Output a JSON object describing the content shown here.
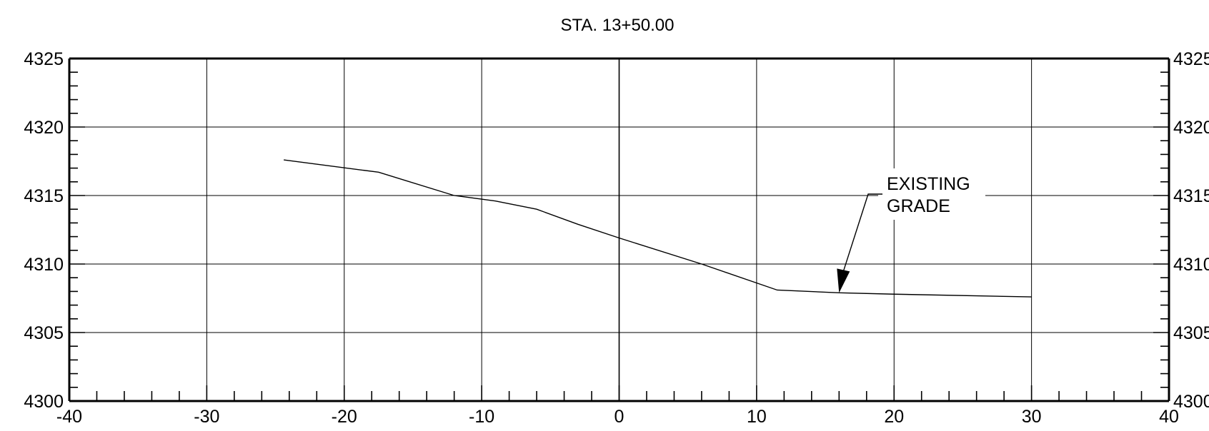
{
  "chart_data": {
    "type": "line",
    "title": "STA. 13+50.00",
    "xlabel": "",
    "ylabel": "",
    "xlim": [
      -40,
      40
    ],
    "ylim": [
      4300,
      4325
    ],
    "grid": true,
    "x_ticks": [
      -40,
      -30,
      -20,
      -10,
      0,
      10,
      20,
      30,
      40
    ],
    "x_tick_labels": [
      "-40",
      "-30",
      "-20",
      "-10",
      "0",
      "10",
      "20",
      "30",
      "40"
    ],
    "y_ticks": [
      4300,
      4305,
      4310,
      4315,
      4320,
      4325
    ],
    "y_tick_labels": [
      "4300",
      "4305",
      "4310",
      "4315",
      "4320",
      "4325"
    ],
    "series": [
      {
        "x": [
          -24.4,
          -17.5,
          -12.0,
          -9.0,
          -6.0,
          -3.0,
          0.0,
          6.0,
          11.5,
          16.0,
          20.0,
          30.0
        ],
        "y": [
          4317.6,
          4316.7,
          4315.0,
          4314.6,
          4314.0,
          4312.9,
          4311.9,
          4310.0,
          4308.1,
          4307.9,
          4307.8,
          4307.6
        ]
      }
    ],
    "annotations": [
      {
        "lines": [
          "EXISTING",
          "GRADE"
        ],
        "points_to": [
          16.0,
          4307.9
        ]
      }
    ]
  }
}
